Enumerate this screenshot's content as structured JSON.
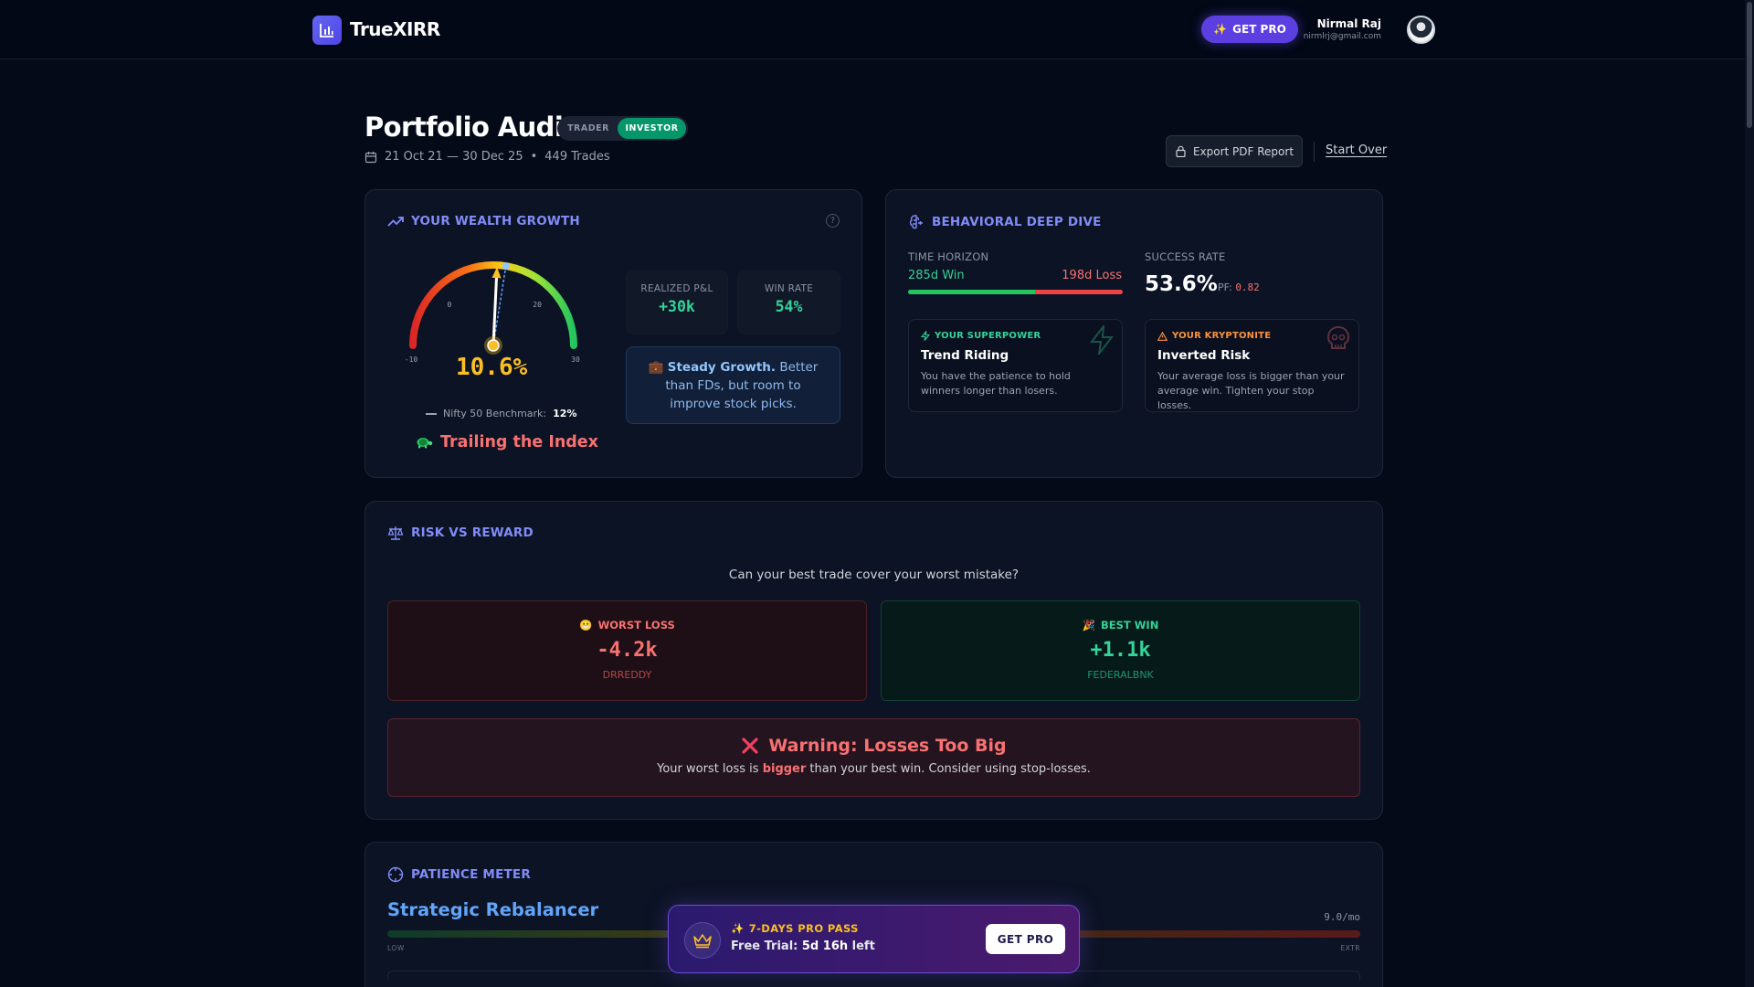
{
  "nav": {
    "brand": "TrueXIRR",
    "get_pro_label": "GET PRO",
    "user_name": "Nirmal Raj",
    "user_email": "nirmlrj@gmail.com"
  },
  "header": {
    "title": "Portfolio Audit",
    "mode_options": [
      "TRADER",
      "INVESTOR"
    ],
    "mode_selected": "INVESTOR",
    "date_range": "21 Oct 21 — 30 Dec 25",
    "separator": "•",
    "trades": "449 Trades",
    "export_label": "Export PDF Report",
    "start_over_label": "Start Over"
  },
  "wealth": {
    "title": "YOUR WEALTH GROWTH",
    "gauge_value_text": "10.6%",
    "gauge_value": 10.6,
    "gauge_benchmark": 12,
    "gauge_min": -10,
    "gauge_max": 30,
    "gauge_ticks": [
      "-10",
      "0",
      "20",
      "30"
    ],
    "benchmark_label": "Nifty 50 Benchmark:",
    "benchmark_value": "12%",
    "verdict": "Trailing the Index",
    "realized_label": "REALIZED P&L",
    "realized_value": "+30k",
    "winrate_label": "WIN RATE",
    "winrate_value": "54%",
    "note_bold": "Steady Growth.",
    "note_text": " Better than FDs, but room to improve stock picks."
  },
  "behavior": {
    "title": "BEHAVIORAL DEEP DIVE",
    "horizon_label": "TIME HORIZON",
    "horizon_win": "285d Win",
    "horizon_loss": "198d Loss",
    "horizon_win_fraction": 0.59,
    "success_label": "SUCCESS RATE",
    "success_value": "53.6%",
    "pf_label": "PF:",
    "pf_value": "0.82",
    "superpower_tag": "YOUR SUPERPOWER",
    "superpower_name": "Trend Riding",
    "superpower_desc": "You have the patience to hold winners longer than losers.",
    "kryptonite_tag": "YOUR KRYPTONITE",
    "kryptonite_name": "Inverted Risk",
    "kryptonite_desc": "Your average loss is bigger than your average win. Tighten your stop losses."
  },
  "risk": {
    "title": "RISK VS REWARD",
    "question": "Can your best trade cover your worst mistake?",
    "worst_label": "WORST LOSS",
    "worst_value": "-4.2k",
    "worst_ticker": "DRREDDY",
    "best_label": "BEST WIN",
    "best_value": "+1.1k",
    "best_ticker": "FEDERALBNK",
    "warning_title": "Warning: Losses Too Big",
    "warning_pre": "Your worst loss is ",
    "warning_bold": "bigger",
    "warning_post": " than your best win. Consider using stop-losses."
  },
  "patience": {
    "title": "PATIENCE METER",
    "profile": "Strategic Rebalancer",
    "rate": "9.0/mo",
    "low": "LOW",
    "high": "EXTR"
  },
  "promo": {
    "tag": "7-DAYS PRO PASS",
    "trial_label": "Free Trial:",
    "trial_value": "5d 16h",
    "trial_suffix": "left",
    "button": "GET PRO"
  },
  "colors": {
    "accent": "#6366f1",
    "positive": "#34d399",
    "negative": "#f87171",
    "warning": "#fbbf24",
    "info": "#60a5fa"
  }
}
